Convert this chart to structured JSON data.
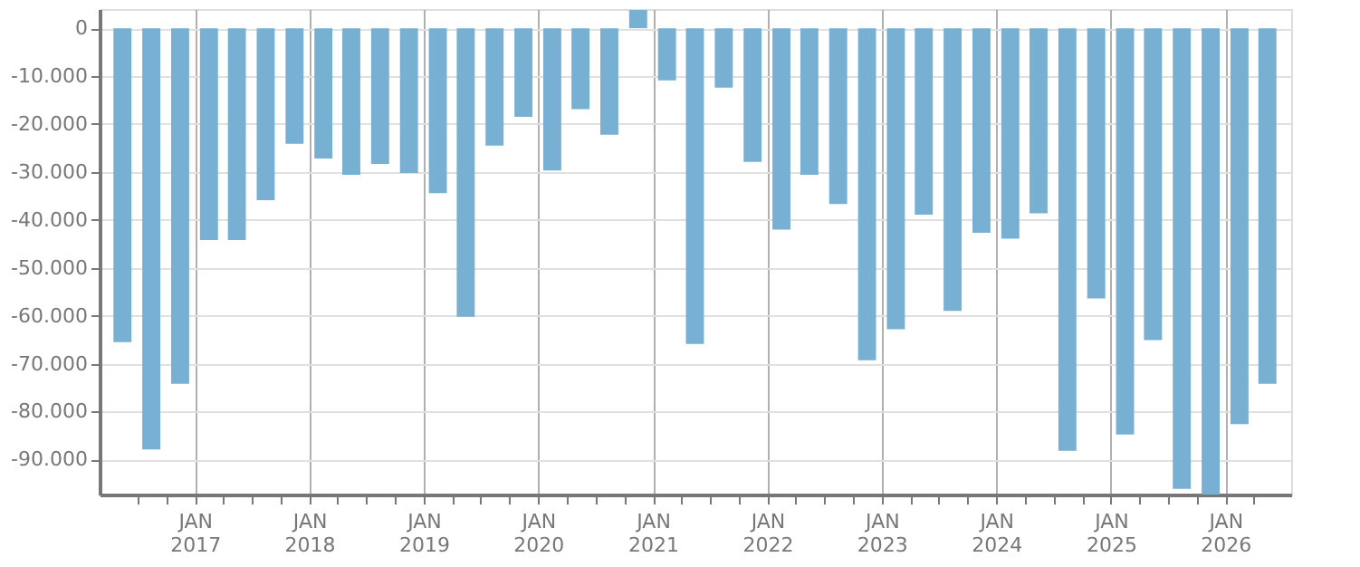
{
  "chart_data": {
    "type": "bar",
    "x": [
      "2016-05-15",
      "2016-08-15",
      "2016-11-15",
      "2017-02-15",
      "2017-05-15",
      "2017-08-15",
      "2017-11-15",
      "2018-02-15",
      "2018-05-15",
      "2018-08-15",
      "2018-11-15",
      "2019-02-15",
      "2019-05-15",
      "2019-08-15",
      "2019-11-15",
      "2020-02-15",
      "2020-05-15",
      "2020-08-15",
      "2020-11-15",
      "2021-02-15",
      "2021-05-15",
      "2021-08-15",
      "2021-11-15",
      "2022-02-15",
      "2022-05-15",
      "2022-08-15",
      "2022-11-15",
      "2023-02-15",
      "2023-05-15",
      "2023-08-15",
      "2023-11-15",
      "2024-02-15",
      "2024-05-15",
      "2024-08-15",
      "2024-11-15",
      "2025-02-15",
      "2025-05-15",
      "2025-08-15",
      "2025-11-15",
      "2026-02-15",
      "2026-05-15"
    ],
    "values": [
      -65500,
      -87900,
      -74200,
      -44200,
      -44200,
      -35900,
      -24100,
      -27200,
      -30600,
      -28300,
      -30200,
      -34400,
      -60200,
      -24500,
      -18500,
      -29700,
      -16900,
      -22200,
      3800,
      -10900,
      -65900,
      -12400,
      -27900,
      -42000,
      -30600,
      -36700,
      -69300,
      -62800,
      -38900,
      -59000,
      -42700,
      -43900,
      -38600,
      -88200,
      -56400,
      -84800,
      -65100,
      -96100,
      -97300,
      -82600,
      -74200
    ],
    "color": "#78b0d3",
    "ylim": [
      -97300,
      4000
    ],
    "yticks": [
      0,
      {
        "value": -10000,
        "label": "-10.000"
      },
      {
        "value": -20000,
        "label": "-20.000"
      },
      {
        "value": -30000,
        "label": "-30.000"
      },
      {
        "value": -40000,
        "label": "-40.000"
      },
      {
        "value": -50000,
        "label": "-50.000"
      },
      {
        "value": -60000,
        "label": "-60.000"
      },
      {
        "value": -70000,
        "label": "-70.000"
      },
      {
        "value": -80000,
        "label": "-80.000"
      },
      {
        "value": -90000,
        "label": "-90.000"
      }
    ],
    "xlim": [
      "2016-04-01",
      "2026-07-01"
    ],
    "xticks": [
      {
        "value": "2016-07-01",
        "label": null
      },
      {
        "value": "2016-10-01",
        "label": null
      },
      {
        "value": "2017-01-01",
        "label": "JAN 2017"
      },
      {
        "value": "2017-04-01",
        "label": null
      },
      {
        "value": "2017-07-01",
        "label": null
      },
      {
        "value": "2017-10-01",
        "label": null
      },
      {
        "value": "2018-01-01",
        "label": "JAN 2018"
      },
      {
        "value": "2018-04-01",
        "label": null
      },
      {
        "value": "2018-07-01",
        "label": null
      },
      {
        "value": "2018-10-01",
        "label": null
      },
      {
        "value": "2019-01-01",
        "label": "JAN 2019"
      },
      {
        "value": "2019-04-01",
        "label": null
      },
      {
        "value": "2019-07-01",
        "label": null
      },
      {
        "value": "2019-10-01",
        "label": null
      },
      {
        "value": "2020-01-01",
        "label": "JAN 2020"
      },
      {
        "value": "2020-04-01",
        "label": null
      },
      {
        "value": "2020-07-01",
        "label": null
      },
      {
        "value": "2020-10-01",
        "label": null
      },
      {
        "value": "2021-01-01",
        "label": "JAN 2021"
      },
      {
        "value": "2021-04-01",
        "label": null
      },
      {
        "value": "2021-07-01",
        "label": null
      },
      {
        "value": "2021-10-01",
        "label": null
      },
      {
        "value": "2022-01-01",
        "label": "JAN 2022"
      },
      {
        "value": "2022-04-01",
        "label": null
      },
      {
        "value": "2022-07-01",
        "label": null
      },
      {
        "value": "2022-10-01",
        "label": null
      },
      {
        "value": "2023-01-01",
        "label": "JAN 2023"
      },
      {
        "value": "2023-04-01",
        "label": null
      },
      {
        "value": "2023-07-01",
        "label": null
      },
      {
        "value": "2023-10-01",
        "label": null
      },
      {
        "value": "2024-01-01",
        "label": "JAN 2024"
      },
      {
        "value": "2024-04-01",
        "label": null
      },
      {
        "value": "2024-07-01",
        "label": null
      },
      {
        "value": "2024-10-01",
        "label": null
      },
      {
        "value": "2025-01-01",
        "label": "JAN 2025"
      },
      {
        "value": "2025-04-01",
        "label": null
      },
      {
        "value": "2025-07-01",
        "label": null
      },
      {
        "value": "2025-10-01",
        "label": null
      },
      {
        "value": "2026-01-01",
        "label": "JAN 2026"
      },
      {
        "value": "2026-04-01",
        "label": null
      }
    ],
    "grid": true
  }
}
